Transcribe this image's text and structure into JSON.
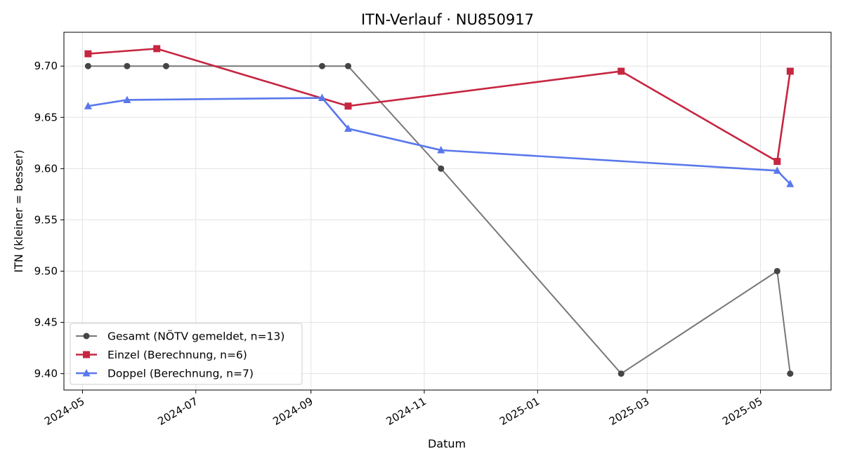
{
  "chart_data": {
    "type": "line",
    "title": "ITN-Verlauf · NU850917",
    "xlabel": "Datum",
    "ylabel": "ITN  (kleiner = besser)",
    "xlim": [
      "2024-04-21",
      "2025-06-08"
    ],
    "ylim": [
      9.384,
      9.733
    ],
    "y_ticks": [
      9.4,
      9.45,
      9.5,
      9.55,
      9.6,
      9.65,
      9.7
    ],
    "y_tick_labels": [
      "9.40",
      "9.45",
      "9.50",
      "9.55",
      "9.60",
      "9.65",
      "9.70"
    ],
    "x_ticks": [
      "2024-05-01",
      "2024-07-01",
      "2024-09-01",
      "2024-11-01",
      "2025-01-01",
      "2025-03-01",
      "2025-05-01"
    ],
    "x_tick_labels": [
      "2024-05",
      "2024-07",
      "2024-09",
      "2024-11",
      "2025-01",
      "2025-03",
      "2025-05"
    ],
    "grid": true,
    "legend_position": "lower-left",
    "series": [
      {
        "name": "Gesamt (NÖTV gemeldet, n=13)",
        "color": "#777777",
        "marker_color": "#454545",
        "marker": "circle",
        "points": [
          {
            "x": "2024-05-04",
            "y": 9.7
          },
          {
            "x": "2024-05-25",
            "y": 9.7
          },
          {
            "x": "2024-06-15",
            "y": 9.7
          },
          {
            "x": "2024-09-07",
            "y": 9.7
          },
          {
            "x": "2024-09-21",
            "y": 9.7
          },
          {
            "x": "2024-11-10",
            "y": 9.6
          },
          {
            "x": "2025-02-15",
            "y": 9.4
          },
          {
            "x": "2025-05-10",
            "y": 9.5
          },
          {
            "x": "2025-05-17",
            "y": 9.4
          }
        ]
      },
      {
        "name": "Einzel (Berechnung, n=6)",
        "color": "#c62641",
        "marker_color": "#c62641",
        "marker": "square",
        "points": [
          {
            "x": "2024-05-04",
            "y": 9.712
          },
          {
            "x": "2024-06-10",
            "y": 9.717
          },
          {
            "x": "2024-09-21",
            "y": 9.661
          },
          {
            "x": "2025-02-15",
            "y": 9.695
          },
          {
            "x": "2025-05-10",
            "y": 9.607
          },
          {
            "x": "2025-05-17",
            "y": 9.695
          }
        ]
      },
      {
        "name": "Doppel (Berechnung, n=7)",
        "color": "#5a78ec",
        "marker_color": "#5a78ec",
        "marker": "triangle",
        "points": [
          {
            "x": "2024-05-04",
            "y": 9.661
          },
          {
            "x": "2024-05-25",
            "y": 9.667
          },
          {
            "x": "2024-09-07",
            "y": 9.669
          },
          {
            "x": "2024-09-21",
            "y": 9.639
          },
          {
            "x": "2024-11-10",
            "y": 9.618
          },
          {
            "x": "2025-05-10",
            "y": 9.598
          },
          {
            "x": "2025-05-17",
            "y": 9.585
          }
        ]
      }
    ]
  }
}
